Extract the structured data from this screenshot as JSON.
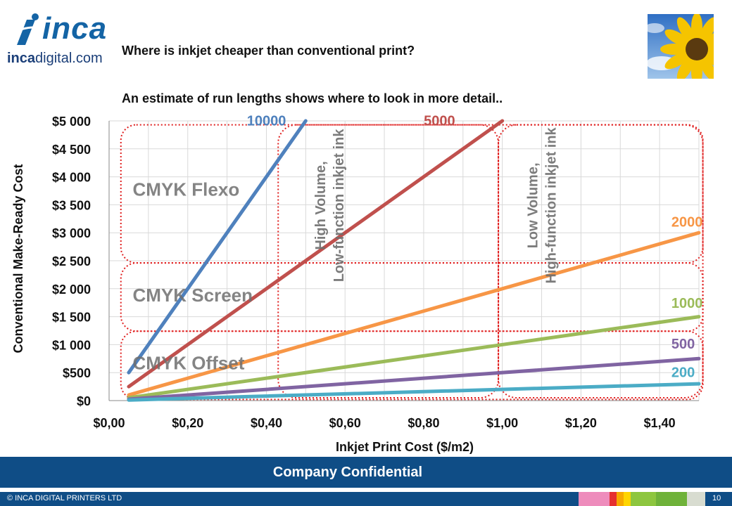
{
  "header": {
    "logo_word": "inca",
    "logo_domain_bold": "inca",
    "logo_domain_rest": "digital.com",
    "title": "Where is inkjet cheaper than conventional print?",
    "subtitle": "An estimate of run lengths shows where to look in more detail.."
  },
  "footer": {
    "band_text": "Company Confidential",
    "copyright": "© INCA DIGITAL PRINTERS LTD",
    "page_number": "10",
    "swatch_colors": [
      "#ee8cbc",
      "#e63030",
      "#f7a800",
      "#ffd500",
      "#8dc63f",
      "#6fb23a",
      "#d8dcd0"
    ]
  },
  "chart_data": {
    "type": "line",
    "xlabel": "Inkjet Print Cost ($/m2)",
    "ylabel": "Conventional Make-Ready Cost",
    "xlim": [
      0,
      1.5
    ],
    "ylim": [
      0,
      5000
    ],
    "x_ticks": [
      0,
      0.2,
      0.4,
      0.6,
      0.8,
      1.0,
      1.2,
      1.4
    ],
    "x_tick_labels": [
      "$0,00",
      "$0,20",
      "$0,40",
      "$0,60",
      "$0,80",
      "$1,00",
      "$1,20",
      "$1,40"
    ],
    "y_ticks": [
      0,
      500,
      1000,
      1500,
      2000,
      2500,
      3000,
      3500,
      4000,
      4500,
      5000
    ],
    "y_tick_labels": [
      "$0",
      "$500",
      "$1 000",
      "$1 500",
      "$2 000",
      "$2 500",
      "$3 000",
      "$3 500",
      "$4 000",
      "$4 500",
      "$5 000"
    ],
    "grid": true,
    "x_range": [
      0.05,
      1.5
    ],
    "series": [
      {
        "name": "10000",
        "slope": 10000,
        "color": "#4f81bd",
        "label_x": 0.45,
        "label_y": 4920
      },
      {
        "name": "5000",
        "slope": 5000,
        "color": "#c0504d",
        "label_x": 0.88,
        "label_y": 4920
      },
      {
        "name": "2000",
        "slope": 2000,
        "color": "#f79646",
        "label_x": 1.43,
        "label_y": 3110
      },
      {
        "name": "1000",
        "slope": 1000,
        "color": "#9bbb59",
        "label_x": 1.43,
        "label_y": 1660
      },
      {
        "name": "500",
        "slope": 500,
        "color": "#8064a2",
        "label_x": 1.43,
        "label_y": 930
      },
      {
        "name": "200",
        "slope": 200,
        "color": "#4bacc6",
        "label_x": 1.43,
        "label_y": 420
      }
    ],
    "regions": [
      {
        "label": "CMYK Flexo",
        "x0": 0.03,
        "x1": 1.51,
        "y0": 2460,
        "y1": 4930,
        "label_x": 0.06,
        "label_y": 3660
      },
      {
        "label": "CMYK Screen",
        "x0": 0.03,
        "x1": 1.51,
        "y0": 1240,
        "y1": 2460,
        "label_x": 0.06,
        "label_y": 1770
      },
      {
        "label": "CMYK Offset",
        "x0": 0.03,
        "x1": 1.51,
        "y0": 20,
        "y1": 1240,
        "label_x": 0.06,
        "label_y": 560
      }
    ],
    "volume_zones": [
      {
        "line1": "High Volume,",
        "line2": "Low-function inkjet ink",
        "x0": 0.43,
        "x1": 0.99,
        "y0": 50,
        "y1": 4930,
        "label_x": 0.75,
        "label_y": 3550
      },
      {
        "line1": "Low Volume,",
        "line2": "High-function inkjet ink",
        "x0": 0.99,
        "x1": 1.51,
        "y0": 50,
        "y1": 4930,
        "label_x": 1.3,
        "label_y": 3550
      }
    ]
  }
}
